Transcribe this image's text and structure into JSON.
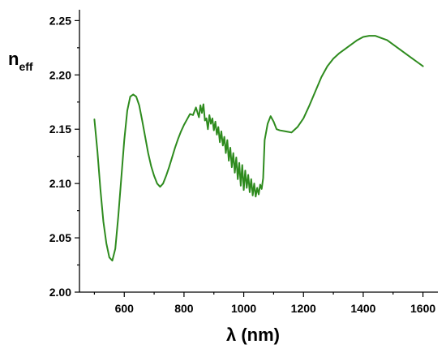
{
  "chart_data": {
    "type": "line",
    "title": "",
    "ylabel": "n",
    "ylabel_sub": "eff",
    "xlabel": "λ (nm)",
    "xlim": [
      450,
      1650
    ],
    "ylim": [
      2.0,
      2.26
    ],
    "grid": false,
    "legend": "none",
    "line_color": "#2e8b1e",
    "x_ticks": [
      600,
      800,
      1000,
      1200,
      1400,
      1600
    ],
    "x_tick_labels": [
      "600",
      "800",
      "1000",
      "1200",
      "1400",
      "1600"
    ],
    "y_ticks": [
      2.0,
      2.05,
      2.1,
      2.15,
      2.2,
      2.25
    ],
    "y_tick_labels": [
      "2.00",
      "2.05",
      "2.10",
      "2.15",
      "2.20",
      "2.25"
    ],
    "series": [
      {
        "x": [
          500,
          510,
          520,
          530,
          540,
          550,
          560,
          570,
          580,
          590,
          600,
          610,
          620,
          630,
          640,
          650,
          660,
          670,
          680,
          690,
          700,
          710,
          720,
          730,
          740,
          750,
          760,
          770,
          780,
          790,
          800,
          810,
          820,
          830,
          840,
          850,
          855,
          860,
          865,
          870,
          875,
          880,
          885,
          890,
          895,
          900,
          905,
          910,
          915,
          920,
          925,
          930,
          935,
          940,
          945,
          950,
          955,
          960,
          965,
          970,
          975,
          980,
          985,
          990,
          995,
          1000,
          1005,
          1010,
          1015,
          1020,
          1025,
          1030,
          1035,
          1040,
          1045,
          1050,
          1055,
          1060,
          1065,
          1070,
          1080,
          1090,
          1100,
          1110,
          1120,
          1140,
          1160,
          1180,
          1200,
          1220,
          1240,
          1260,
          1280,
          1300,
          1320,
          1340,
          1360,
          1380,
          1400,
          1420,
          1440,
          1460,
          1480,
          1500,
          1520,
          1540,
          1560,
          1580,
          1600
        ],
        "y": [
          2.159,
          2.13,
          2.095,
          2.065,
          2.045,
          2.032,
          2.029,
          2.04,
          2.07,
          2.105,
          2.14,
          2.167,
          2.18,
          2.182,
          2.18,
          2.172,
          2.158,
          2.143,
          2.128,
          2.116,
          2.107,
          2.1,
          2.097,
          2.1,
          2.107,
          2.115,
          2.124,
          2.133,
          2.141,
          2.148,
          2.154,
          2.159,
          2.164,
          2.163,
          2.17,
          2.161,
          2.172,
          2.165,
          2.173,
          2.158,
          2.16,
          2.15,
          2.163,
          2.155,
          2.16,
          2.149,
          2.157,
          2.145,
          2.152,
          2.138,
          2.148,
          2.135,
          2.143,
          2.128,
          2.14,
          2.121,
          2.133,
          2.115,
          2.128,
          2.11,
          2.124,
          2.104,
          2.119,
          2.098,
          2.117,
          2.094,
          2.112,
          2.096,
          2.108,
          2.092,
          2.104,
          2.089,
          2.1,
          2.088,
          2.096,
          2.09,
          2.099,
          2.095,
          2.105,
          2.14,
          2.155,
          2.162,
          2.157,
          2.15,
          2.149,
          2.148,
          2.147,
          2.152,
          2.16,
          2.172,
          2.185,
          2.198,
          2.208,
          2.215,
          2.22,
          2.224,
          2.228,
          2.232,
          2.235,
          2.236,
          2.236,
          2.234,
          2.232,
          2.228,
          2.224,
          2.22,
          2.216,
          2.212,
          2.208
        ]
      }
    ]
  }
}
